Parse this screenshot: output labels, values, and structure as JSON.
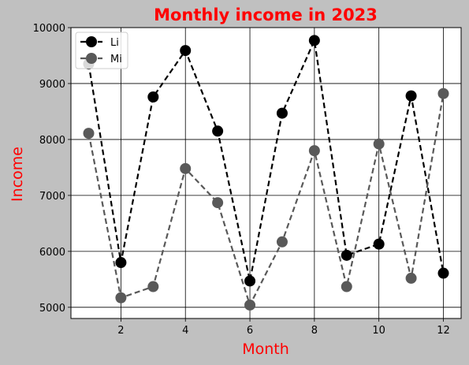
{
  "chart_data": {
    "type": "line",
    "title": "Monthly income in 2023",
    "xlabel": "Month",
    "ylabel": "Income",
    "x": [
      1,
      2,
      3,
      4,
      5,
      6,
      7,
      8,
      9,
      10,
      11,
      12
    ],
    "xlim": [
      0.45,
      12.55
    ],
    "ylim": [
      4800,
      10000
    ],
    "xticks": [
      2,
      4,
      6,
      8,
      10,
      12
    ],
    "yticks": [
      5000,
      6000,
      7000,
      8000,
      9000,
      10000
    ],
    "grid": true,
    "legend": "top-left",
    "series": [
      {
        "name": "Li",
        "color": "#000000",
        "values": [
          9350,
          5800,
          8760,
          9590,
          8150,
          5470,
          8470,
          9770,
          5930,
          6130,
          8780,
          5610
        ]
      },
      {
        "name": "Mi",
        "color": "#595959",
        "values": [
          8110,
          5170,
          5370,
          7480,
          6870,
          5040,
          6170,
          7800,
          5370,
          7920,
          5520,
          8820
        ]
      }
    ],
    "colors": {
      "title": "#ff0000",
      "axis_label": "#ff0000",
      "background": "#c0c0c0",
      "plot_area": "#ffffff"
    }
  }
}
